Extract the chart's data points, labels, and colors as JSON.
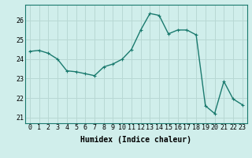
{
  "x": [
    0,
    1,
    2,
    3,
    4,
    5,
    6,
    7,
    8,
    9,
    10,
    11,
    12,
    13,
    14,
    15,
    16,
    17,
    18,
    19,
    20,
    21,
    22,
    23
  ],
  "y": [
    24.4,
    24.45,
    24.3,
    24.0,
    23.4,
    23.35,
    23.25,
    23.15,
    23.6,
    23.75,
    24.0,
    24.5,
    25.5,
    26.35,
    26.25,
    25.3,
    25.5,
    25.5,
    25.25,
    21.6,
    21.2,
    22.85,
    21.95,
    21.65
  ],
  "line_color": "#1a7a6e",
  "marker": "P",
  "marker_size": 2.5,
  "bg_color": "#d0eeeb",
  "grid_color": "#b8d8d4",
  "xlabel": "Humidex (Indice chaleur)",
  "xlim": [
    -0.5,
    23.5
  ],
  "ylim": [
    20.7,
    26.8
  ],
  "yticks": [
    21,
    22,
    23,
    24,
    25,
    26
  ],
  "xticks": [
    0,
    1,
    2,
    3,
    4,
    5,
    6,
    7,
    8,
    9,
    10,
    11,
    12,
    13,
    14,
    15,
    16,
    17,
    18,
    19,
    20,
    21,
    22,
    23
  ],
  "xlabel_fontsize": 7,
  "tick_fontsize": 6,
  "line_width": 1.0
}
